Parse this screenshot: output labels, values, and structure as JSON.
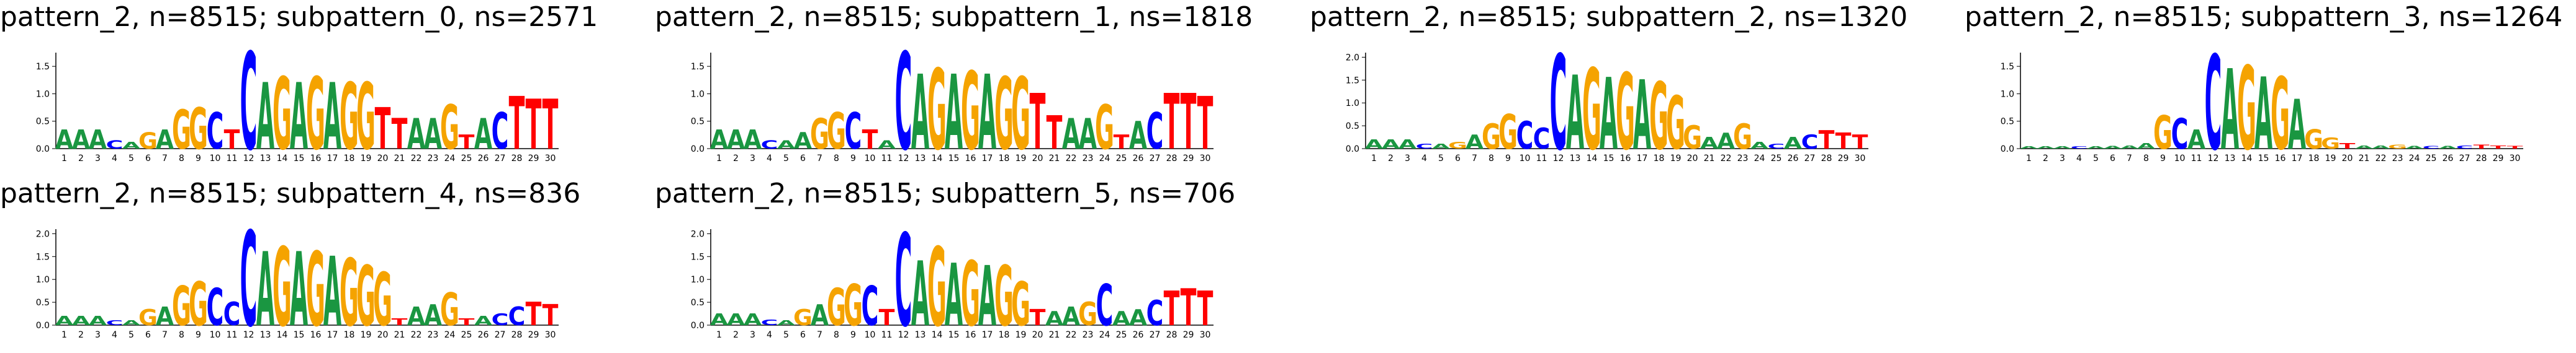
{
  "colors": {
    "A": "#1a9641",
    "C": "#0000ff",
    "G": "#f5a300",
    "T": "#ff0000",
    "axis": "#000000"
  },
  "chart_data": [
    {
      "type": "sequence-logo",
      "title": "pattern_2, n=8515; subpattern_0, ns=2571",
      "ylim": [
        0,
        1.75
      ],
      "yticks": [
        "0.0",
        "0.5",
        "1.0",
        "1.5"
      ],
      "xticks": [
        "1",
        "2",
        "3",
        "4",
        "5",
        "6",
        "7",
        "8",
        "9",
        "10",
        "11",
        "12",
        "13",
        "14",
        "15",
        "16",
        "17",
        "18",
        "19",
        "20",
        "21",
        "22",
        "23",
        "24",
        "25",
        "26",
        "27",
        "28",
        "29",
        "30"
      ],
      "sequence": [
        "A",
        "A",
        "A",
        "C",
        "A",
        "G",
        "A",
        "G",
        "G",
        "C",
        "T",
        "C",
        "A",
        "G",
        "A",
        "G",
        "A",
        "G",
        "G",
        "T",
        "T",
        "A",
        "A",
        "G",
        "T",
        "A",
        "C",
        "T",
        "T",
        "T"
      ],
      "heights": [
        0.35,
        0.35,
        0.35,
        0.15,
        0.12,
        0.3,
        0.35,
        0.7,
        0.75,
        0.65,
        0.35,
        1.75,
        1.2,
        1.3,
        1.2,
        1.3,
        1.2,
        1.2,
        1.2,
        0.75,
        0.55,
        0.55,
        0.55,
        0.8,
        0.25,
        0.55,
        0.65,
        0.95,
        0.9,
        0.9
      ]
    },
    {
      "type": "sequence-logo",
      "title": "pattern_2, n=8515; subpattern_1, ns=1818",
      "ylim": [
        0,
        1.75
      ],
      "yticks": [
        "0.0",
        "0.5",
        "1.0",
        "1.5"
      ],
      "xticks": [
        "1",
        "2",
        "3",
        "4",
        "5",
        "6",
        "7",
        "8",
        "9",
        "10",
        "11",
        "12",
        "13",
        "14",
        "15",
        "16",
        "17",
        "18",
        "19",
        "20",
        "21",
        "22",
        "23",
        "24",
        "25",
        "26",
        "27",
        "28",
        "29",
        "30"
      ],
      "sequence": [
        "A",
        "A",
        "A",
        "C",
        "A",
        "A",
        "G",
        "G",
        "C",
        "T",
        "A",
        "C",
        "A",
        "G",
        "A",
        "G",
        "A",
        "G",
        "G",
        "T",
        "T",
        "A",
        "A",
        "G",
        "T",
        "A",
        "C",
        "T",
        "T",
        "T"
      ],
      "heights": [
        0.35,
        0.35,
        0.35,
        0.15,
        0.15,
        0.3,
        0.55,
        0.65,
        0.65,
        0.35,
        0.15,
        1.75,
        1.35,
        1.45,
        1.35,
        1.4,
        1.35,
        1.3,
        1.3,
        1.0,
        0.6,
        0.55,
        0.55,
        0.8,
        0.25,
        0.5,
        0.65,
        1.0,
        1.0,
        0.95
      ]
    },
    {
      "type": "sequence-logo",
      "title": "pattern_2, n=8515; subpattern_2, ns=1320",
      "ylim": [
        0,
        2.1
      ],
      "yticks": [
        "0.0",
        "0.5",
        "1.0",
        "1.5",
        "2.0"
      ],
      "xticks": [
        "1",
        "2",
        "3",
        "4",
        "5",
        "6",
        "7",
        "8",
        "9",
        "10",
        "11",
        "12",
        "13",
        "14",
        "15",
        "16",
        "17",
        "18",
        "19",
        "20",
        "21",
        "22",
        "23",
        "24",
        "25",
        "26",
        "27",
        "28",
        "29",
        "30"
      ],
      "sequence": [
        "A",
        "A",
        "A",
        "C",
        "A",
        "G",
        "A",
        "G",
        "G",
        "C",
        "C",
        "C",
        "A",
        "G",
        "A",
        "G",
        "A",
        "G",
        "G",
        "G",
        "A",
        "A",
        "G",
        "A",
        "C",
        "A",
        "C",
        "T",
        "T",
        "T"
      ],
      "heights": [
        0.2,
        0.2,
        0.2,
        0.1,
        0.1,
        0.15,
        0.3,
        0.55,
        0.75,
        0.6,
        0.45,
        2.05,
        1.6,
        1.75,
        1.55,
        1.65,
        1.5,
        1.45,
        1.15,
        0.5,
        0.25,
        0.35,
        0.55,
        0.15,
        0.1,
        0.25,
        0.3,
        0.4,
        0.35,
        0.3
      ]
    },
    {
      "type": "sequence-logo",
      "title": "pattern_2, n=8515; subpattern_3, ns=1264",
      "ylim": [
        0,
        1.75
      ],
      "yticks": [
        "0.0",
        "0.5",
        "1.0",
        "1.5"
      ],
      "xticks": [
        "1",
        "2",
        "3",
        "4",
        "5",
        "6",
        "7",
        "8",
        "9",
        "10",
        "11",
        "12",
        "13",
        "14",
        "15",
        "16",
        "17",
        "18",
        "19",
        "20",
        "21",
        "22",
        "23",
        "24",
        "25",
        "26",
        "27",
        "28",
        "29",
        "30"
      ],
      "sequence": [
        "A",
        "A",
        "A",
        "C",
        "A",
        "A",
        "A",
        "A",
        "G",
        "C",
        "A",
        "C",
        "A",
        "G",
        "A",
        "G",
        "A",
        "G",
        "G",
        "T",
        "A",
        "A",
        "G",
        "A",
        "C",
        "A",
        "C",
        "T",
        "T",
        "T"
      ],
      "heights": [
        0.04,
        0.04,
        0.04,
        0.04,
        0.04,
        0.05,
        0.06,
        0.1,
        0.6,
        0.55,
        0.35,
        1.7,
        1.45,
        1.5,
        1.3,
        1.3,
        0.9,
        0.35,
        0.2,
        0.1,
        0.06,
        0.06,
        0.07,
        0.05,
        0.05,
        0.05,
        0.06,
        0.07,
        0.06,
        0.05
      ]
    },
    {
      "type": "sequence-logo",
      "title": "pattern_2, n=8515; subpattern_4, ns=836",
      "ylim": [
        0,
        2.1
      ],
      "yticks": [
        "0.0",
        "0.5",
        "1.0",
        "1.5",
        "2.0"
      ],
      "xticks": [
        "1",
        "2",
        "3",
        "4",
        "5",
        "6",
        "7",
        "8",
        "9",
        "10",
        "11",
        "12",
        "13",
        "14",
        "15",
        "16",
        "17",
        "18",
        "19",
        "20",
        "21",
        "22",
        "23",
        "24",
        "25",
        "26",
        "27",
        "28",
        "29",
        "30"
      ],
      "sequence": [
        "A",
        "A",
        "A",
        "C",
        "A",
        "G",
        "A",
        "G",
        "G",
        "C",
        "C",
        "C",
        "A",
        "G",
        "A",
        "G",
        "A",
        "G",
        "G",
        "G",
        "T",
        "A",
        "A",
        "G",
        "T",
        "A",
        "C",
        "C",
        "T",
        "T"
      ],
      "heights": [
        0.2,
        0.2,
        0.2,
        0.1,
        0.1,
        0.35,
        0.4,
        0.85,
        0.95,
        0.8,
        0.5,
        2.05,
        1.6,
        1.7,
        1.6,
        1.6,
        1.5,
        1.45,
        1.3,
        1.15,
        0.15,
        0.4,
        0.45,
        0.7,
        0.15,
        0.2,
        0.25,
        0.4,
        0.5,
        0.45
      ]
    },
    {
      "type": "sequence-logo",
      "title": "pattern_2, n=8515; subpattern_5, ns=706",
      "ylim": [
        0,
        2.1
      ],
      "yticks": [
        "0.0",
        "0.5",
        "1.0",
        "1.5",
        "2.0"
      ],
      "xticks": [
        "1",
        "2",
        "3",
        "4",
        "5",
        "6",
        "7",
        "8",
        "9",
        "10",
        "11",
        "12",
        "13",
        "14",
        "15",
        "16",
        "17",
        "18",
        "19",
        "20",
        "21",
        "22",
        "23",
        "24",
        "25",
        "26",
        "27",
        "28",
        "29",
        "30"
      ],
      "sequence": [
        "A",
        "A",
        "A",
        "C",
        "A",
        "G",
        "A",
        "G",
        "G",
        "C",
        "T",
        "C",
        "A",
        "G",
        "A",
        "G",
        "A",
        "G",
        "G",
        "T",
        "A",
        "A",
        "G",
        "C",
        "A",
        "A",
        "C",
        "T",
        "T",
        "T"
      ],
      "heights": [
        0.25,
        0.25,
        0.25,
        0.12,
        0.1,
        0.35,
        0.45,
        0.8,
        0.9,
        0.85,
        0.35,
        2.0,
        1.4,
        1.7,
        1.35,
        1.4,
        1.3,
        1.3,
        0.95,
        0.35,
        0.3,
        0.4,
        0.5,
        0.9,
        0.3,
        0.35,
        0.55,
        0.75,
        0.8,
        0.75
      ]
    }
  ]
}
